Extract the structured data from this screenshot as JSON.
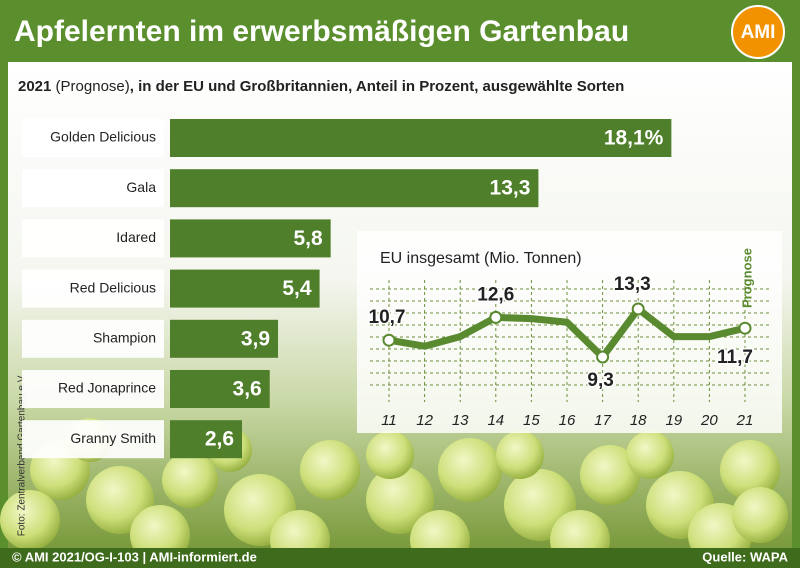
{
  "header": {
    "title": "Apfelernten im erwerbsmäßigen Gartenbau",
    "logo": "AMI"
  },
  "chart_data": [
    {
      "type": "bar",
      "orientation": "horizontal",
      "subtitle": [
        "2021",
        " (Prognose)",
        ", in der EU und Großbritannien, Anteil in Prozent, ausgewählte Sorten"
      ],
      "categories": [
        "Golden Delicious",
        "Gala",
        "Idared",
        "Red Delicious",
        "Shampion",
        "Red Jonaprince",
        "Granny Smith"
      ],
      "values": [
        18.1,
        13.3,
        5.8,
        5.4,
        3.9,
        3.6,
        2.6
      ],
      "value_labels": [
        "18,1%",
        "13,3",
        "5,8",
        "5,4",
        "3,9",
        "3,6",
        "2,6"
      ],
      "color": "#4f7f2a",
      "xlim": [
        0,
        20
      ]
    },
    {
      "type": "line",
      "title": "EU insgesamt (Mio. Tonnen)",
      "categories": [
        "11",
        "12",
        "13",
        "14",
        "15",
        "16",
        "17",
        "18",
        "19",
        "20",
        "21"
      ],
      "values": [
        10.7,
        10.2,
        11.0,
        12.6,
        12.5,
        12.2,
        9.3,
        13.3,
        11.0,
        11.0,
        11.7
      ],
      "value_labels": [
        "10,7",
        null,
        null,
        "12,6",
        null,
        null,
        "9,3",
        "13,3",
        null,
        null,
        "11,7"
      ],
      "annotation": "Prognose",
      "color": "#5a8a30",
      "ylim": [
        8,
        14.5
      ],
      "grid": true
    }
  ],
  "footer": {
    "left": "© AMI 2021/OG-I-103 | AMI-informiert.de",
    "right": "Quelle: WAPA"
  },
  "photo_credit": "Foto: Zentralverband Gartenbau e.V."
}
